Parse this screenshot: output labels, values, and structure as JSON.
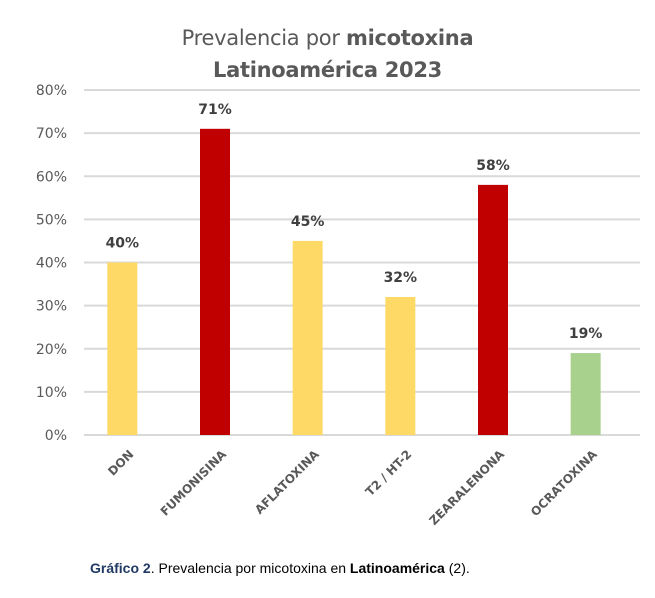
{
  "chart_data": {
    "type": "bar",
    "title": {
      "line1_regular": "Prevalencia por ",
      "line1_bold": "micotoxina",
      "line2_bold": "Latinoamérica 2023"
    },
    "categories": [
      "DON",
      "FUMONISINA",
      "AFLATOXINA",
      "T2 / HT-2",
      "ZEARALENONA",
      "OCRATOXINA"
    ],
    "values": [
      40,
      71,
      45,
      32,
      58,
      19
    ],
    "data_labels": [
      "40%",
      "71%",
      "45%",
      "32%",
      "58%",
      "19%"
    ],
    "bar_colors": [
      "#ffd966",
      "#c00000",
      "#ffd966",
      "#ffd966",
      "#c00000",
      "#a9d18e"
    ],
    "xlabel": "",
    "ylabel": "",
    "ylim": [
      0,
      80
    ],
    "yticks": [
      0,
      10,
      20,
      30,
      40,
      50,
      60,
      70,
      80
    ],
    "ytick_labels": [
      "0%",
      "10%",
      "20%",
      "30%",
      "40%",
      "50%",
      "60%",
      "70%",
      "80%"
    ],
    "grid": true,
    "legend": "none"
  },
  "caption": {
    "label": "Gráfico 2",
    "text_before": ". Prevalencia por micotoxina en ",
    "bold": "Latinoamérica",
    "text_after": " (2)."
  },
  "colors": {
    "gridline": "#d9d9d9",
    "axis_text": "#595959",
    "data_label": "#404040",
    "caption_label": "#1f3864"
  }
}
